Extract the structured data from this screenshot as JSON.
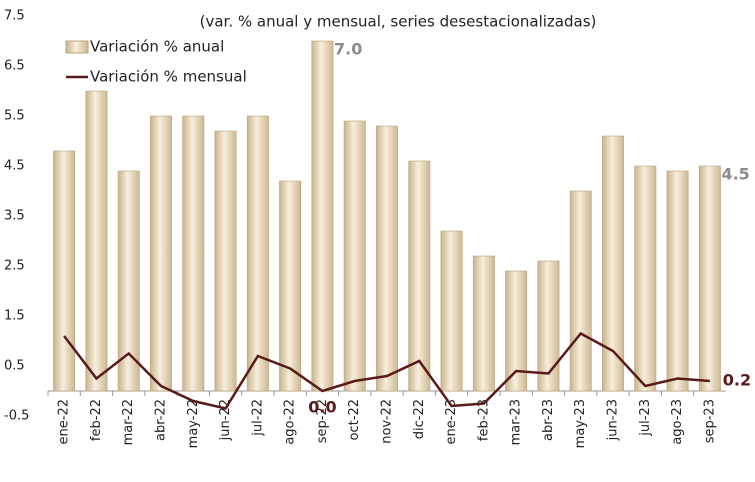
{
  "chart_data": {
    "type": "bar_line",
    "title": "(var. % anual y mensual, series desestacionalizadas)",
    "categories": [
      "ene-22",
      "feb-22",
      "mar-22",
      "abr-22",
      "may-22",
      "jun-22",
      "jul-22",
      "ago-22",
      "sep-22",
      "oct-22",
      "nov-22",
      "dic-22",
      "ene-23",
      "feb-23",
      "mar-23",
      "abr-23",
      "may-23",
      "jun-23",
      "jul-23",
      "ago-23",
      "sep-23"
    ],
    "series": [
      {
        "name": "Variación % anual",
        "type": "bar",
        "color": "#ead9b9",
        "values": [
          4.8,
          6.0,
          4.4,
          5.5,
          5.5,
          5.2,
          5.5,
          4.2,
          7.0,
          5.4,
          5.3,
          4.6,
          3.2,
          2.7,
          2.4,
          2.6,
          4.0,
          5.1,
          4.5,
          4.4,
          4.5
        ],
        "value_labels": [
          null,
          null,
          null,
          null,
          null,
          null,
          null,
          null,
          "7.0",
          null,
          null,
          null,
          null,
          null,
          null,
          null,
          null,
          null,
          null,
          null,
          "4.5"
        ]
      },
      {
        "name": "Variación % mensual",
        "type": "line",
        "color": "#5a1a1a",
        "values": [
          1.1,
          0.25,
          0.75,
          0.1,
          -0.2,
          -0.35,
          0.7,
          0.45,
          0.0,
          0.2,
          0.3,
          0.6,
          -0.3,
          -0.25,
          0.4,
          0.35,
          1.15,
          0.8,
          0.1,
          0.25,
          0.2
        ],
        "value_labels": [
          null,
          null,
          null,
          null,
          null,
          null,
          null,
          null,
          "0.0",
          null,
          null,
          null,
          null,
          null,
          null,
          null,
          null,
          null,
          null,
          null,
          "0.2"
        ]
      }
    ],
    "ylim": [
      -0.5,
      7.5
    ],
    "yticks": [
      -0.5,
      0.5,
      1.5,
      2.5,
      3.5,
      4.5,
      5.5,
      6.5,
      7.5
    ],
    "grid": false,
    "legend": "top-left"
  }
}
